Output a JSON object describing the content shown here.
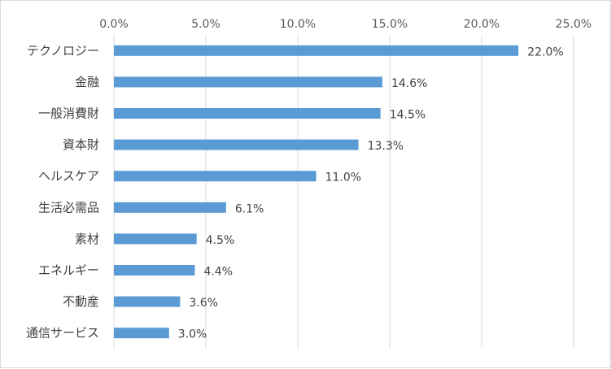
{
  "chart_data": {
    "type": "bar",
    "orientation": "horizontal",
    "categories": [
      "テクノロジー",
      "金融",
      "一般消費財",
      "資本財",
      "ヘルスケア",
      "生活必需品",
      "素材",
      "エネルギー",
      "不動産",
      "通信サービス"
    ],
    "values": [
      22.0,
      14.6,
      14.5,
      13.3,
      11.0,
      6.1,
      4.5,
      4.4,
      3.6,
      3.0
    ],
    "data_labels": [
      "22.0%",
      "14.6%",
      "14.5%",
      "13.3%",
      "11.0%",
      "6.1%",
      "4.5%",
      "4.4%",
      "3.6%",
      "3.0%"
    ],
    "x_ticks": [
      "0.0%",
      "5.0%",
      "10.0%",
      "15.0%",
      "20.0%",
      "25.0%"
    ],
    "xlim": [
      0,
      25
    ],
    "x_axis_position": "top",
    "grid": true,
    "legend": "none",
    "bar_color": "#5b9bd5",
    "grid_color": "#d9d9d9"
  }
}
